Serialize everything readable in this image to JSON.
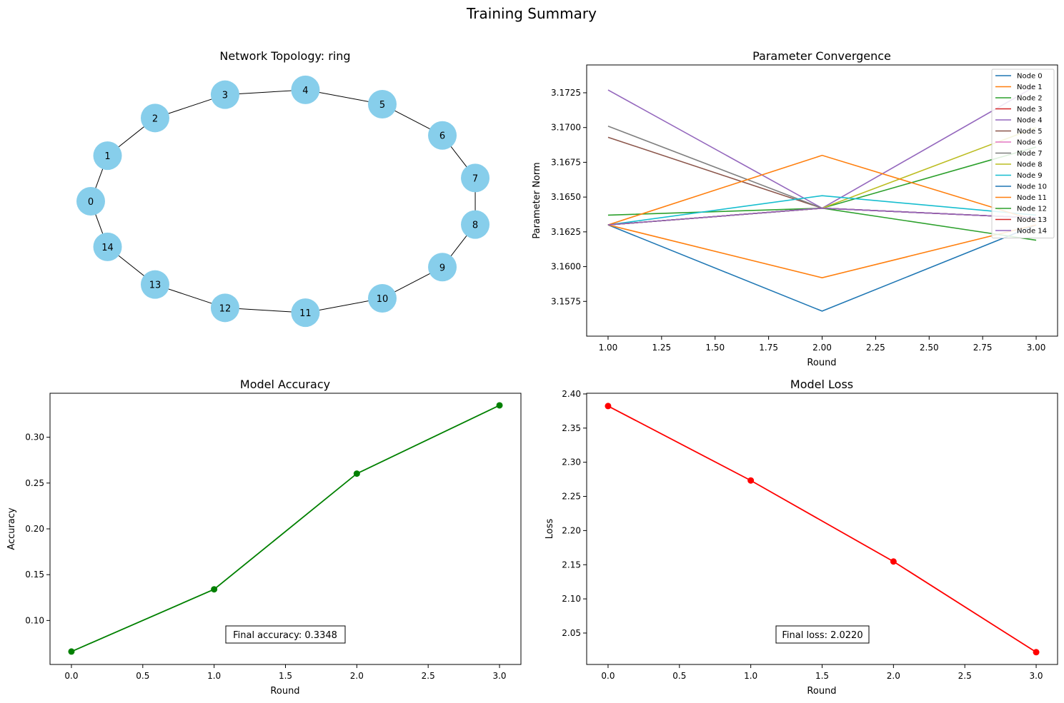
{
  "figure": {
    "suptitle": "Training Summary"
  },
  "chart_data": [
    {
      "type": "network",
      "title": "Network Topology: ring",
      "nodes": [
        0,
        1,
        2,
        3,
        4,
        5,
        6,
        7,
        8,
        9,
        10,
        11,
        12,
        13,
        14
      ],
      "edges": [
        [
          0,
          1
        ],
        [
          1,
          2
        ],
        [
          2,
          3
        ],
        [
          3,
          4
        ],
        [
          4,
          5
        ],
        [
          5,
          6
        ],
        [
          6,
          7
        ],
        [
          7,
          8
        ],
        [
          8,
          9
        ],
        [
          9,
          10
        ],
        [
          10,
          11
        ],
        [
          11,
          12
        ],
        [
          12,
          13
        ],
        [
          13,
          14
        ],
        [
          14,
          0
        ]
      ],
      "node_color": "#87CEEB"
    },
    {
      "type": "line",
      "title": "Parameter Convergence",
      "xlabel": "Round",
      "ylabel": "Parameter Norm",
      "xlim": [
        0.9,
        3.1
      ],
      "ylim": [
        3.155,
        3.1745
      ],
      "xticks": [
        "1.00",
        "1.25",
        "1.50",
        "1.75",
        "2.00",
        "2.25",
        "2.50",
        "2.75",
        "3.00"
      ],
      "yticks": [
        "3.1575",
        "3.1600",
        "3.1625",
        "3.1650",
        "3.1675",
        "3.1700",
        "3.1725"
      ],
      "legend": "top-right",
      "x": [
        1,
        2,
        3
      ],
      "series": [
        {
          "name": "Node 0",
          "color": "#1f77b4",
          "values": [
            3.163,
            3.1568,
            3.163
          ]
        },
        {
          "name": "Node 1",
          "color": "#ff7f0e",
          "values": [
            3.163,
            3.1592,
            3.163
          ]
        },
        {
          "name": "Node 2",
          "color": "#2ca02c",
          "values": [
            3.1637,
            3.1642,
            3.1686
          ]
        },
        {
          "name": "Node 3",
          "color": "#d62728",
          "values": [
            3.163,
            3.1642,
            3.1635
          ]
        },
        {
          "name": "Node 4",
          "color": "#9467bd",
          "values": [
            3.1727,
            3.1642,
            3.173
          ]
        },
        {
          "name": "Node 5",
          "color": "#8c564b",
          "values": [
            3.1693,
            3.1642,
            3.1635
          ]
        },
        {
          "name": "Node 6",
          "color": "#e377c2",
          "values": [
            3.163,
            3.1642,
            3.1635
          ]
        },
        {
          "name": "Node 7",
          "color": "#7f7f7f",
          "values": [
            3.1701,
            3.1642,
            3.1635
          ]
        },
        {
          "name": "Node 8",
          "color": "#bcbd22",
          "values": [
            3.163,
            3.1642,
            3.17
          ]
        },
        {
          "name": "Node 9",
          "color": "#17becf",
          "values": [
            3.163,
            3.1651,
            3.1637
          ]
        },
        {
          "name": "Node 10",
          "color": "#1f77b4",
          "values": [
            3.163,
            3.1642,
            3.1635
          ]
        },
        {
          "name": "Node 11",
          "color": "#ff7f0e",
          "values": [
            3.163,
            3.168,
            3.1633
          ]
        },
        {
          "name": "Node 12",
          "color": "#2ca02c",
          "values": [
            3.163,
            3.1642,
            3.1619
          ]
        },
        {
          "name": "Node 13",
          "color": "#d62728",
          "values": [
            3.163,
            3.1642,
            3.1635
          ]
        },
        {
          "name": "Node 14",
          "color": "#9467bd",
          "values": [
            3.163,
            3.1642,
            3.1635
          ]
        }
      ]
    },
    {
      "type": "line",
      "title": "Model Accuracy",
      "xlabel": "Round",
      "ylabel": "Accuracy",
      "xlim": [
        -0.15,
        3.15
      ],
      "ylim": [
        0.052,
        0.348
      ],
      "xticks": [
        "0.0",
        "0.5",
        "1.0",
        "1.5",
        "2.0",
        "2.5",
        "3.0"
      ],
      "yticks": [
        "0.10",
        "0.15",
        "0.20",
        "0.25",
        "0.30"
      ],
      "x": [
        0,
        1,
        2,
        3
      ],
      "values": [
        0.0661,
        0.134,
        0.2603,
        0.3348
      ],
      "color": "#008000",
      "annotation": "Final accuracy: 0.3348"
    },
    {
      "type": "line",
      "title": "Model Loss",
      "xlabel": "Round",
      "ylabel": "Loss",
      "xlim": [
        -0.15,
        3.15
      ],
      "ylim": [
        2.004,
        2.401
      ],
      "xticks": [
        "0.0",
        "0.5",
        "1.0",
        "1.5",
        "2.0",
        "2.5",
        "3.0"
      ],
      "yticks": [
        "2.05",
        "2.10",
        "2.15",
        "2.20",
        "2.25",
        "2.30",
        "2.35",
        "2.40"
      ],
      "x": [
        0,
        1,
        2,
        3
      ],
      "values": [
        2.3823,
        2.2733,
        2.1547,
        2.022
      ],
      "color": "#ff0000",
      "annotation": "Final loss: 2.0220"
    }
  ]
}
